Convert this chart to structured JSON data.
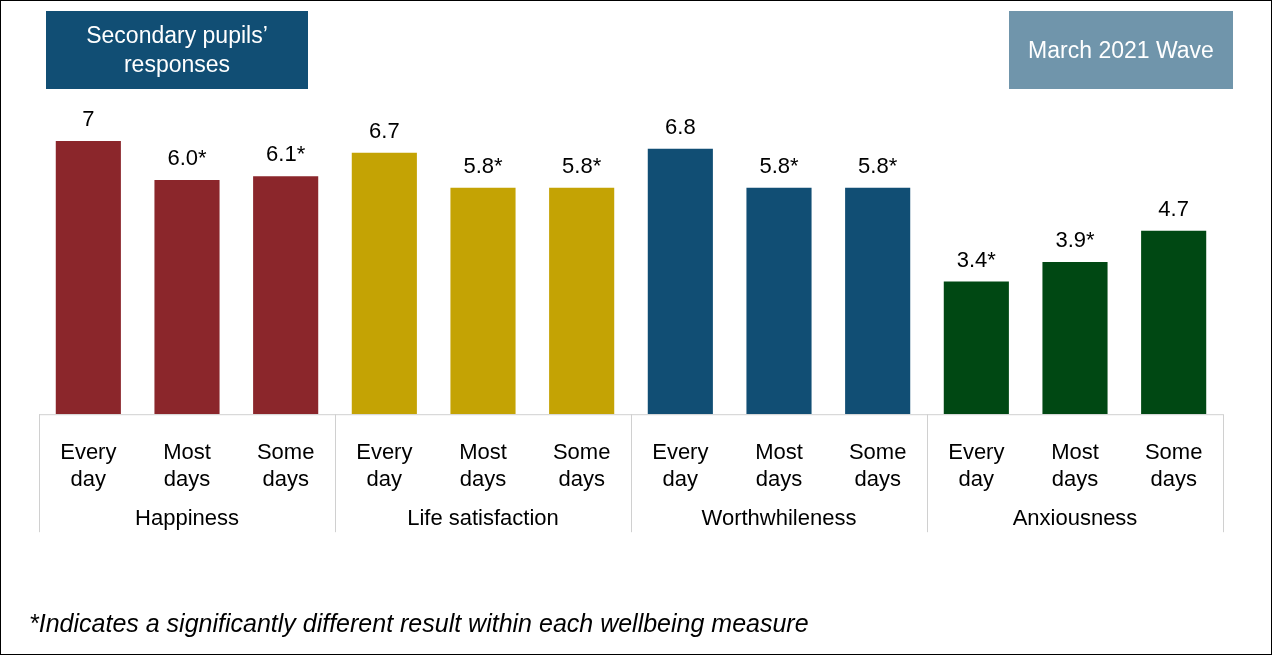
{
  "chart_data": {
    "type": "bar",
    "title": "Secondary pupils’ responses",
    "subtitle": "March 2021 Wave",
    "categories": [
      "Every day",
      "Most days",
      "Some days",
      "Every day",
      "Most days",
      "Some days",
      "Every day",
      "Most days",
      "Some days",
      "Every day",
      "Most days",
      "Some days"
    ],
    "values": [
      7,
      6.0,
      6.1,
      6.7,
      5.8,
      5.8,
      6.8,
      5.8,
      5.8,
      3.4,
      3.9,
      4.7
    ],
    "value_labels": [
      "7",
      "6.0*",
      "6.1*",
      "6.7",
      "5.8*",
      "5.8*",
      "6.8",
      "5.8*",
      "5.8*",
      "3.4*",
      "3.9*",
      "4.7"
    ],
    "colors": [
      "#8b262b",
      "#8b262b",
      "#8b262b",
      "#c4a304",
      "#c4a304",
      "#c4a304",
      "#114e74",
      "#114e74",
      "#114e74",
      "#004813",
      "#004813",
      "#004813"
    ],
    "annotations": [
      "Happiness",
      "Life satisfaction",
      "Worthwhileness",
      "Anxiousness",
      "*Indicates a significantly different result within each wellbeing measure"
    ],
    "legend": false
  }
}
